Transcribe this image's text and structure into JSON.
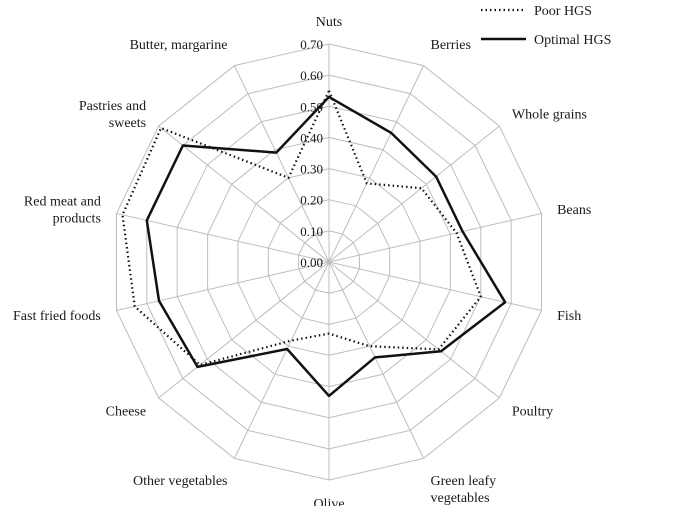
{
  "chart_data": {
    "type": "radar",
    "title": "",
    "categories": [
      "Nuts",
      "Berries",
      "Whole grains",
      "Beans",
      "Fish",
      "Poultry",
      "Green leafy vegetables",
      "Olive",
      "Other vegetables",
      "Cheese",
      "Fast fried foods",
      "Red meat and products",
      "Pastries and sweets",
      "Butter, margarine"
    ],
    "category_lines": [
      [
        "Nuts"
      ],
      [
        "Berries"
      ],
      [
        "Whole grains"
      ],
      [
        "Beans"
      ],
      [
        "Fish"
      ],
      [
        "Poultry"
      ],
      [
        "Green leafy",
        "vegetables"
      ],
      [
        "Olive"
      ],
      [
        "Other vegetables"
      ],
      [
        "Cheese"
      ],
      [
        "Fast fried foods"
      ],
      [
        "Red meat and",
        "products"
      ],
      [
        "Pastries and",
        "sweets"
      ],
      [
        "Butter, margarine"
      ]
    ],
    "rlim": [
      0,
      0.7
    ],
    "ticks": [
      "0.00",
      "0.10",
      "0.20",
      "0.30",
      "0.40",
      "0.50",
      "0.60",
      "0.70"
    ],
    "grid": true,
    "legend_position": "top-right",
    "series": [
      {
        "name": "Poor HGS",
        "style": "dotted",
        "color": "#111111",
        "values": [
          0.55,
          0.28,
          0.38,
          0.42,
          0.5,
          0.45,
          0.3,
          0.23,
          0.28,
          0.53,
          0.64,
          0.68,
          0.69,
          0.3
        ]
      },
      {
        "name": "Optimal HGS",
        "style": "solid",
        "color": "#111111",
        "values": [
          0.53,
          0.46,
          0.44,
          0.44,
          0.58,
          0.46,
          0.34,
          0.43,
          0.31,
          0.54,
          0.56,
          0.6,
          0.6,
          0.39
        ]
      }
    ]
  }
}
